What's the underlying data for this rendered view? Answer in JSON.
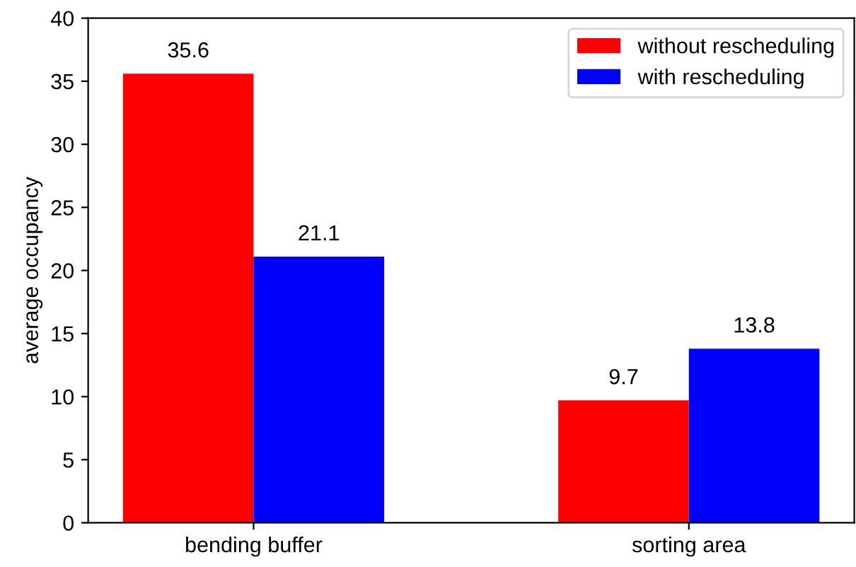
{
  "chart_data": {
    "type": "bar",
    "ylabel": "average occupancy",
    "categories": [
      "bending buffer",
      "sorting area"
    ],
    "series": [
      {
        "name": "without rescheduling",
        "color": "#ff0000",
        "values": [
          35.6,
          9.7
        ]
      },
      {
        "name": "with rescheduling",
        "color": "#0000ff",
        "values": [
          21.1,
          13.8
        ]
      }
    ],
    "ylim": [
      0,
      40
    ],
    "yticks": [
      0,
      5,
      10,
      15,
      20,
      25,
      30,
      35,
      40
    ],
    "data_labels": true,
    "legend": "top right",
    "grid": false
  }
}
